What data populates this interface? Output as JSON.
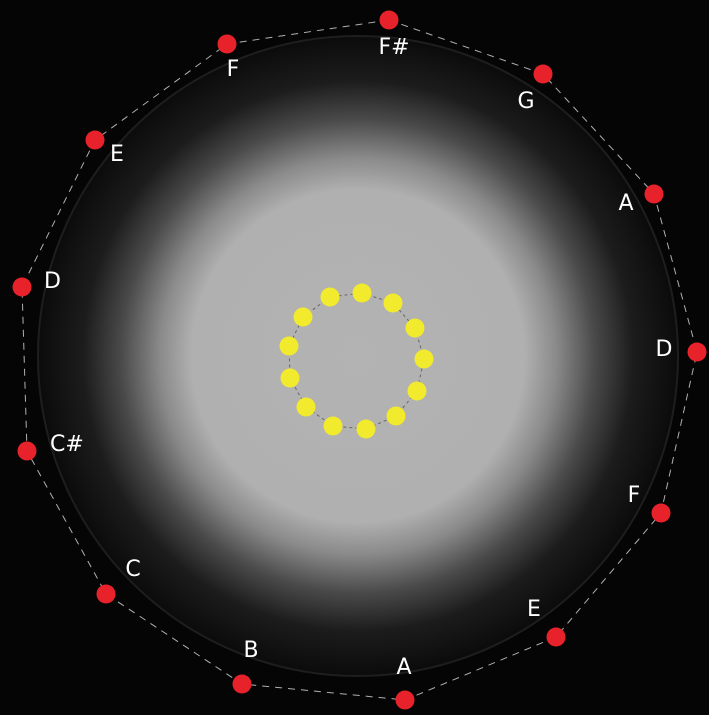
{
  "colors": {
    "background": "#050505",
    "outer_note_dot": "#e8222a",
    "inner_dot": "#f2ea2c",
    "label_text": "#ffffff",
    "glow_center": "#b3b3b3",
    "path_line": "#cfcfcf"
  },
  "outer_notes": [
    {
      "label": "F#"
    },
    {
      "label": "G"
    },
    {
      "label": "A"
    },
    {
      "label": "D"
    },
    {
      "label": "F"
    },
    {
      "label": "E"
    },
    {
      "label": "A"
    },
    {
      "label": "B"
    },
    {
      "label": "C"
    },
    {
      "label": "C#"
    },
    {
      "label": "D"
    },
    {
      "label": "E"
    },
    {
      "label": "F"
    }
  ],
  "inner_dot_count": 13
}
